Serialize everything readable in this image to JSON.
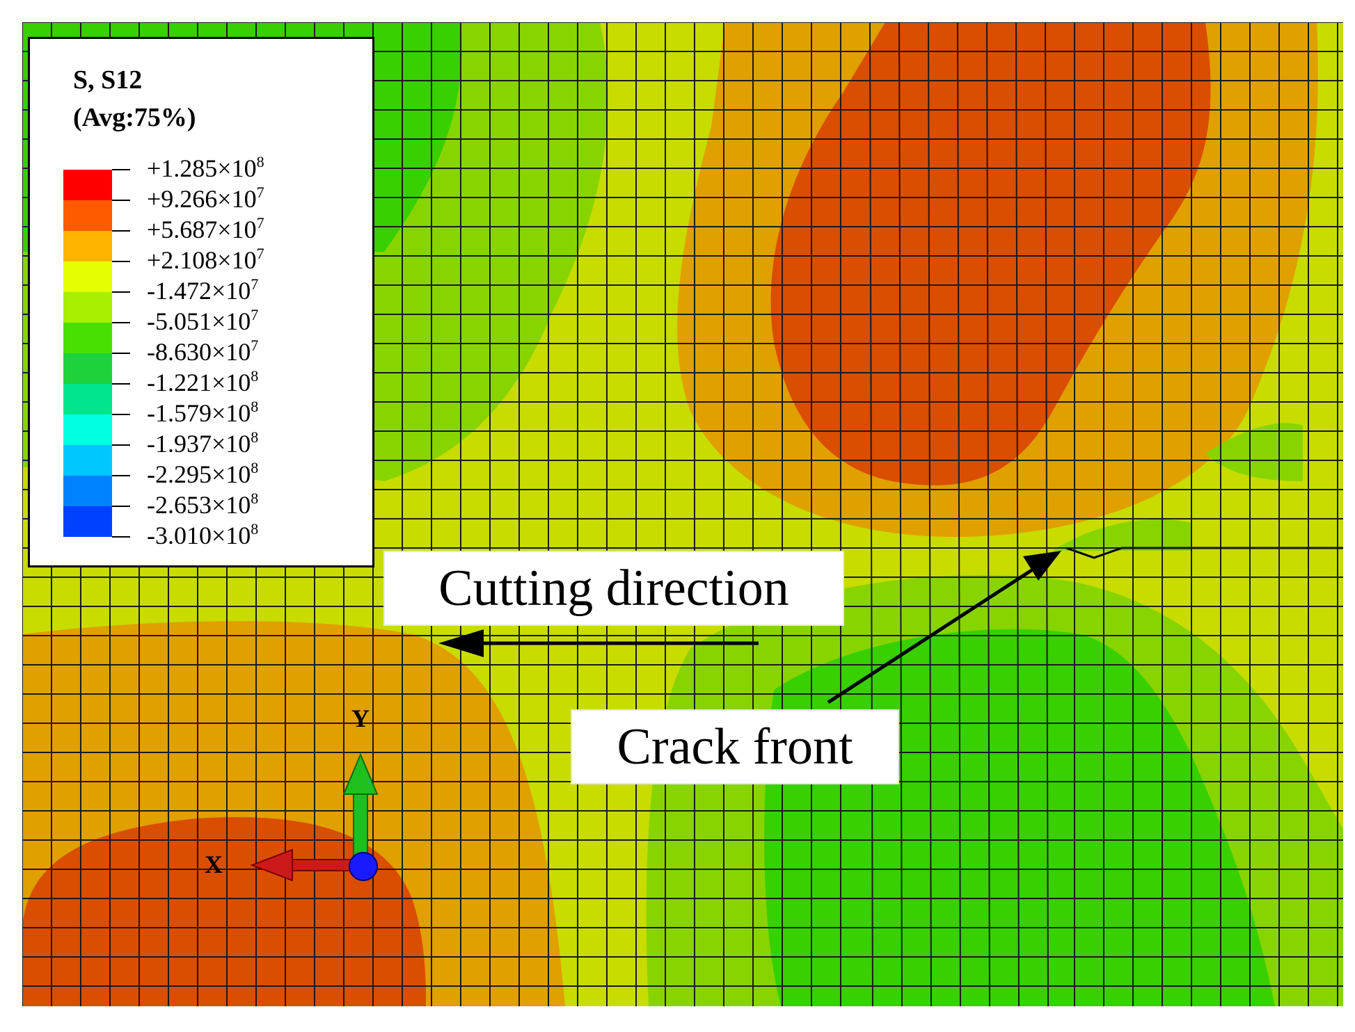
{
  "legend": {
    "title_line1": "S, S12",
    "title_line2": "(Avg:75%)",
    "levels": [
      {
        "label": "+1.285×10",
        "exp": "8",
        "color": "#ff0000"
      },
      {
        "label": "+9.266×10",
        "exp": "7",
        "color": "#ff5a00"
      },
      {
        "label": "+5.687×10",
        "exp": "7",
        "color": "#ffb400"
      },
      {
        "label": "+2.108×10",
        "exp": "7",
        "color": "#e6ff00"
      },
      {
        "label": "-1.472×10",
        "exp": "7",
        "color": "#a6f000"
      },
      {
        "label": "-5.051×10",
        "exp": "7",
        "color": "#48e000"
      },
      {
        "label": "-8.630×10",
        "exp": "7",
        "color": "#1ed23c"
      },
      {
        "label": "-1.221×10",
        "exp": "8",
        "color": "#00e68c"
      },
      {
        "label": "-1.579×10",
        "exp": "8",
        "color": "#00ffe0"
      },
      {
        "label": "-1.937×10",
        "exp": "8",
        "color": "#00c8ff"
      },
      {
        "label": "-2.295×10",
        "exp": "8",
        "color": "#0082ff"
      },
      {
        "label": "-2.653×10",
        "exp": "8",
        "color": "#0040ff"
      },
      {
        "label": "-3.010×10",
        "exp": "8",
        "color": "#0000f0"
      }
    ]
  },
  "annotations": {
    "cutting_direction": "Cutting direction",
    "crack_front": "Crack front"
  },
  "triad": {
    "y_label": "Y",
    "x_label": "X"
  },
  "colors": {
    "band_orange_red": "#d94e00",
    "band_orange": "#e0a000",
    "band_yellow": "#c8dc00",
    "band_lime": "#88d400",
    "band_green": "#38d000",
    "mesh": "#1a1a1a"
  }
}
